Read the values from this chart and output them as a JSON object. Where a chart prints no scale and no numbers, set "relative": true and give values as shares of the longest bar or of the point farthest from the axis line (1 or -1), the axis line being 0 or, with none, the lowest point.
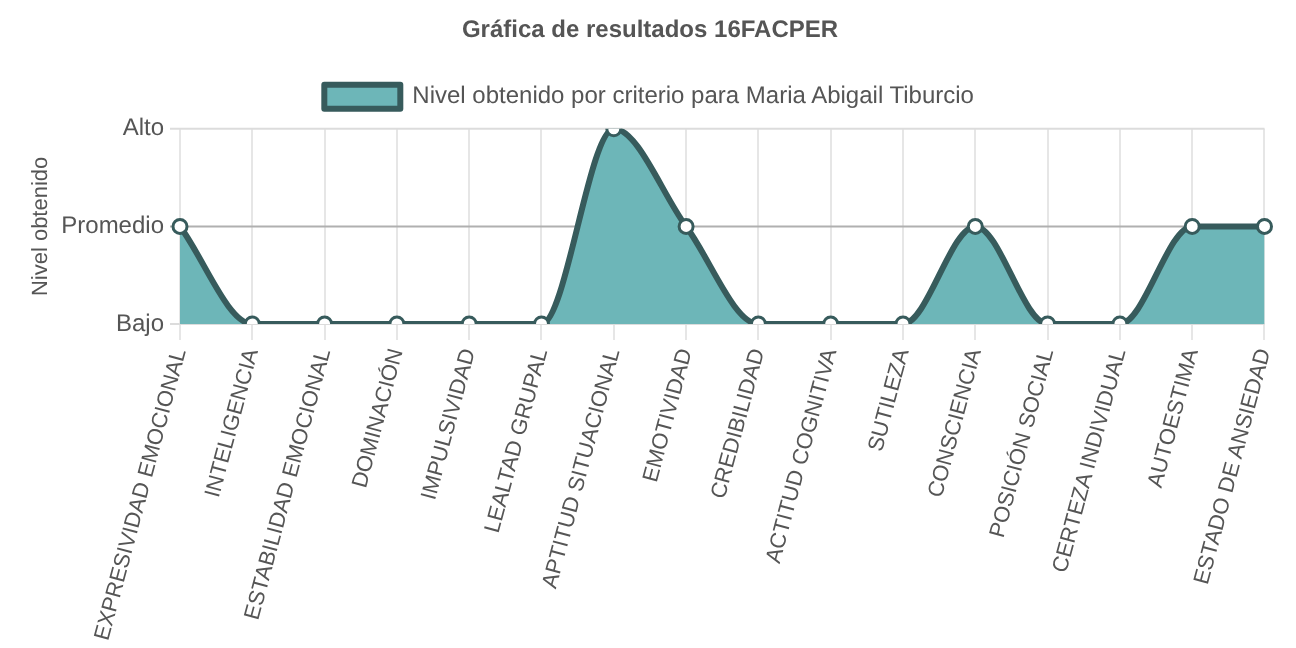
{
  "chart_data": {
    "type": "area",
    "title": "Gráfica de resultados 16FACPER",
    "ylabel": "Nivel obtenido",
    "relative": true,
    "categories": [
      "EXPRESIVIDAD EMOCIONAL",
      "INTELIGENCIA",
      "ESTABILIDAD EMOCIONAL",
      "DOMINACIÓN",
      "IMPULSIVIDAD",
      "LEALTAD GRUPAL",
      "APTITUD SITUACIONAL",
      "EMOTIVIDAD",
      "CREDIBILIDAD",
      "ACTITUD COGNITIVA",
      "SUTILEZA",
      "CONSCIENCIA",
      "POSICIÓN SOCIAL",
      "CERTEZA INDIVIDUAL",
      "AUTOESTIMA",
      "ESTADO DE ANSIEDAD"
    ],
    "series": [
      {
        "name": "Nivel obtenido por criterio para Maria Abigail Tiburcio",
        "color": "#6db6b8",
        "values": [
          0.5,
          0,
          0,
          0,
          0,
          0,
          1,
          0.5,
          0,
          0,
          0,
          0.5,
          0,
          0,
          0.5,
          0.5
        ]
      }
    ],
    "ref_lines": [
      {
        "axis": "y",
        "value": 0,
        "label": "Bajo"
      },
      {
        "axis": "y",
        "value": 0.5,
        "label": "Promedio",
        "color": "#b0b0b0"
      },
      {
        "axis": "y",
        "value": 1,
        "label": "Alto"
      }
    ],
    "grid": "x",
    "legend": "top",
    "marker": "circle",
    "line_style": "solid"
  }
}
